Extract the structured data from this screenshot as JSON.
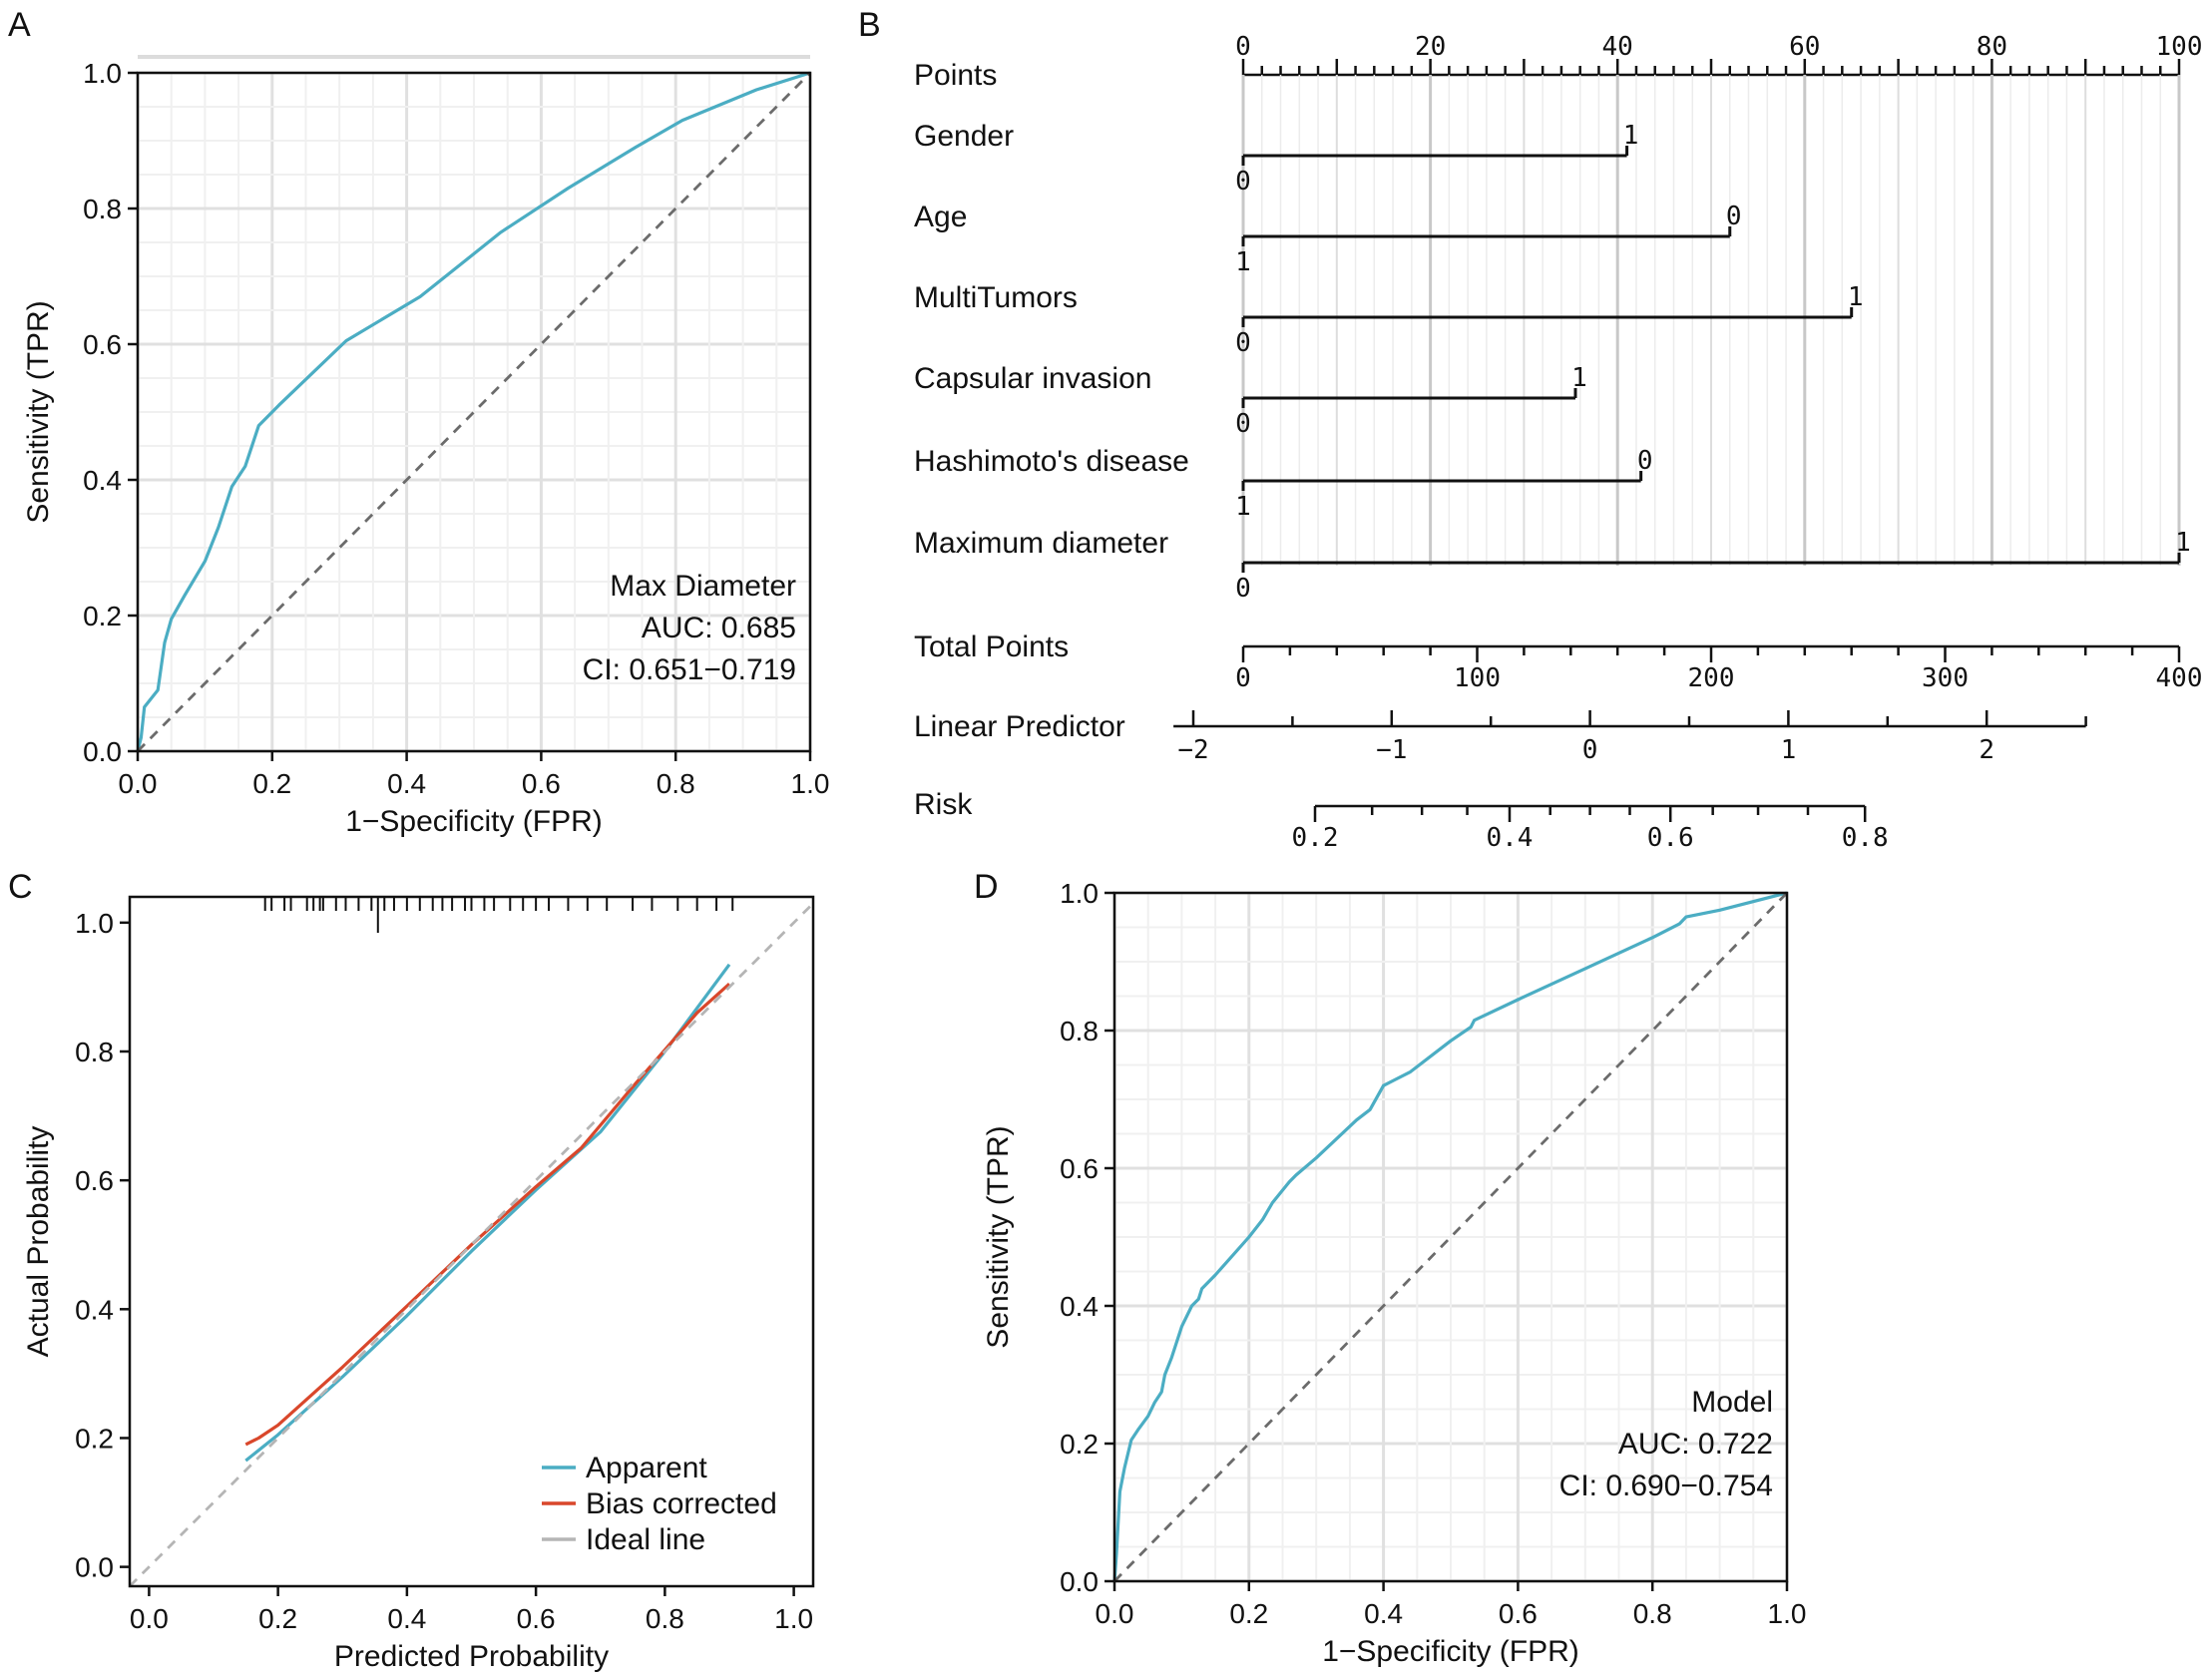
{
  "chart_data": [
    {
      "panel": "A",
      "type": "line",
      "title": "",
      "xlabel": "1−Specificity (FPR)",
      "ylabel": "Sensitivity (TPR)",
      "xlim": [
        0,
        1
      ],
      "ylim": [
        0,
        1
      ],
      "xticks": [
        "0.0",
        "0.2",
        "0.4",
        "0.6",
        "0.8",
        "1.0"
      ],
      "yticks": [
        "0.0",
        "0.2",
        "0.4",
        "0.6",
        "0.8",
        "1.0"
      ],
      "grid": true,
      "series": [
        {
          "name": "Max Diameter",
          "color": "#4BADC3",
          "x": [
            0,
            0.005,
            0.01,
            0.03,
            0.04,
            0.05,
            0.07,
            0.1,
            0.12,
            0.14,
            0.16,
            0.18,
            0.21,
            0.31,
            0.42,
            0.54,
            0.64,
            0.74,
            0.81,
            0.92,
            1.0
          ],
          "y": [
            0,
            0.02,
            0.065,
            0.09,
            0.16,
            0.195,
            0.23,
            0.28,
            0.33,
            0.39,
            0.42,
            0.48,
            0.51,
            0.605,
            0.67,
            0.765,
            0.83,
            0.89,
            0.93,
            0.975,
            1.0
          ]
        },
        {
          "name": "Reference",
          "color": "#6b6b6b",
          "dashed": true,
          "x": [
            0,
            1
          ],
          "y": [
            0,
            1
          ]
        }
      ],
      "annotations": [
        "Max Diameter",
        "AUC: 0.685",
        "CI: 0.651−0.719"
      ]
    },
    {
      "panel": "B",
      "type": "nomogram",
      "points_axis": {
        "label": "Points",
        "min": 0,
        "max": 100,
        "ticks": [
          "0",
          "20",
          "40",
          "60",
          "80",
          "100"
        ]
      },
      "variables": [
        {
          "label": "Gender",
          "top": "1",
          "bottom": "0",
          "points": 41
        },
        {
          "label": "Age",
          "top": "0",
          "bottom": "1",
          "points": 52
        },
        {
          "label": "MultiTumors",
          "top": "1",
          "bottom": "0",
          "points": 65
        },
        {
          "label": "Capsular invasion",
          "top": "1",
          "bottom": "0",
          "points": 35.5
        },
        {
          "label": "Hashimoto's disease",
          "top": "0",
          "bottom": "1",
          "points": 42.5
        },
        {
          "label": "Maximum diameter",
          "top": "1",
          "bottom": "0",
          "points": 100
        }
      ],
      "total_points": {
        "label": "Total Points",
        "min": 0,
        "max": 400,
        "ticks": [
          "0",
          "100",
          "200",
          "300",
          "400"
        ]
      },
      "linear_predictor": {
        "label": "Linear Predictor",
        "min": -2,
        "max": 2.5,
        "ticks": [
          "−2",
          "−1",
          "0",
          "1",
          "2"
        ],
        "tick_values": [
          -2,
          -1,
          0,
          1,
          2
        ]
      },
      "risk": {
        "label": "Risk",
        "ticks": [
          "0.2",
          "0.4",
          "0.6",
          "0.8"
        ],
        "tick_values": [
          0.2,
          0.4,
          0.6,
          0.8
        ]
      }
    },
    {
      "panel": "C",
      "type": "line",
      "title": "",
      "xlabel": "Predicted Probability",
      "ylabel": "Actual Probability",
      "xlim": [
        -0.03,
        1.03
      ],
      "ylim": [
        -0.03,
        1.04
      ],
      "xticks": [
        "0.0",
        "0.2",
        "0.4",
        "0.6",
        "0.8",
        "1.0"
      ],
      "yticks": [
        "0.0",
        "0.2",
        "0.4",
        "0.6",
        "0.8",
        "1.0"
      ],
      "grid": false,
      "legend": "bottom-right",
      "series": [
        {
          "name": "Apparent",
          "color": "#4BADC3",
          "x": [
            0.15,
            0.2,
            0.3,
            0.4,
            0.5,
            0.6,
            0.7,
            0.8,
            0.9
          ],
          "y": [
            0.165,
            0.205,
            0.295,
            0.39,
            0.49,
            0.585,
            0.675,
            0.8,
            0.935
          ]
        },
        {
          "name": "Bias corrected",
          "color": "#D9472B",
          "x": [
            0.15,
            0.17,
            0.2,
            0.3,
            0.4,
            0.5,
            0.6,
            0.67,
            0.75,
            0.85,
            0.9
          ],
          "y": [
            0.19,
            0.2,
            0.22,
            0.31,
            0.405,
            0.5,
            0.59,
            0.65,
            0.745,
            0.86,
            0.905
          ]
        },
        {
          "name": "Ideal line",
          "color": "#b5b5b5",
          "dashed": true,
          "x": [
            -0.03,
            1.03
          ],
          "y": [
            -0.03,
            1.03
          ]
        }
      ],
      "rug": [
        0.18,
        0.19,
        0.21,
        0.22,
        0.245,
        0.255,
        0.265,
        0.27,
        0.29,
        0.305,
        0.325,
        0.345,
        0.355,
        0.365,
        0.38,
        0.4,
        0.42,
        0.44,
        0.455,
        0.47,
        0.49,
        0.5,
        0.52,
        0.535,
        0.56,
        0.58,
        0.6,
        0.62,
        0.65,
        0.68,
        0.71,
        0.75,
        0.78,
        0.82,
        0.85,
        0.88,
        0.905
      ],
      "rug_tall": [
        0.355
      ]
    },
    {
      "panel": "D",
      "type": "line",
      "title": "",
      "xlabel": "1−Specificity (FPR)",
      "ylabel": "Sensitivity (TPR)",
      "xlim": [
        0,
        1
      ],
      "ylim": [
        0,
        1
      ],
      "xticks": [
        "0.0",
        "0.2",
        "0.4",
        "0.6",
        "0.8",
        "1.0"
      ],
      "yticks": [
        "0.0",
        "0.2",
        "0.4",
        "0.6",
        "0.8",
        "1.0"
      ],
      "grid": true,
      "series": [
        {
          "name": "Model",
          "color": "#4BADC3",
          "x": [
            0,
            0.003,
            0.008,
            0.015,
            0.025,
            0.035,
            0.05,
            0.06,
            0.07,
            0.075,
            0.085,
            0.1,
            0.115,
            0.125,
            0.13,
            0.15,
            0.2,
            0.22,
            0.235,
            0.26,
            0.27,
            0.3,
            0.36,
            0.38,
            0.4,
            0.44,
            0.5,
            0.53,
            0.535,
            0.6,
            0.7,
            0.8,
            0.81,
            0.84,
            0.85,
            0.9,
            1.0
          ],
          "y": [
            0,
            0.04,
            0.13,
            0.165,
            0.205,
            0.22,
            0.24,
            0.26,
            0.275,
            0.3,
            0.325,
            0.37,
            0.4,
            0.41,
            0.425,
            0.445,
            0.5,
            0.525,
            0.55,
            0.58,
            0.59,
            0.615,
            0.67,
            0.685,
            0.72,
            0.74,
            0.785,
            0.805,
            0.815,
            0.845,
            0.89,
            0.935,
            0.94,
            0.955,
            0.965,
            0.975,
            1.0
          ]
        },
        {
          "name": "Reference",
          "color": "#6b6b6b",
          "dashed": true,
          "x": [
            0,
            1
          ],
          "y": [
            0,
            1
          ]
        }
      ],
      "annotations": [
        "Model",
        "AUC: 0.722",
        "CI: 0.690−0.754"
      ]
    }
  ],
  "panel_labels": [
    "A",
    "B",
    "C",
    "D"
  ]
}
